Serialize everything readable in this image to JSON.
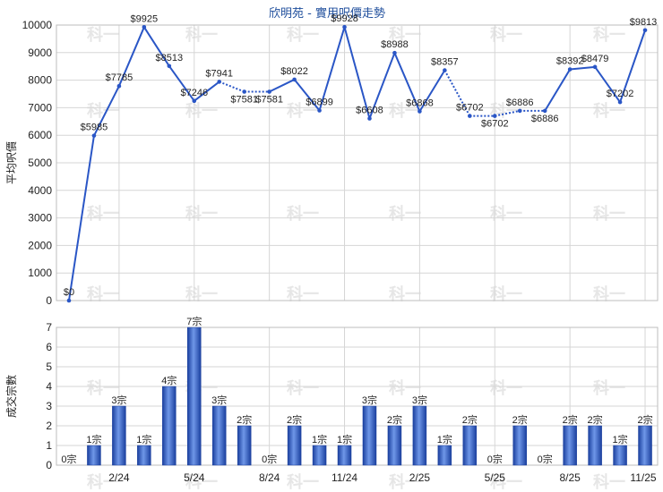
{
  "chart_data": [
    {
      "type": "line",
      "title": "欣明苑 - 實用呎價走勢",
      "ylabel": "平均呎價",
      "ylim": [
        0,
        10000
      ],
      "yticks": [
        0,
        1000,
        2000,
        3000,
        4000,
        5000,
        6000,
        7000,
        8000,
        9000,
        10000
      ],
      "x_tick_labels": [
        "2/24",
        "5/24",
        "8/24",
        "11/24",
        "2/25",
        "5/25",
        "8/25",
        "11/25"
      ],
      "series": [
        {
          "color": "#2a56c6",
          "values": [
            0,
            5985,
            7785,
            9925,
            8513,
            7246,
            7941,
            7581,
            7581,
            8022,
            6899,
            9928,
            6608,
            8988,
            6868,
            8357,
            6702,
            6702,
            6886,
            6886,
            8392,
            8479,
            7202,
            9813
          ],
          "labels": [
            "$0",
            "$5985",
            "$7785",
            "$9925",
            "$8513",
            "$7246",
            "$7941",
            "$7581",
            "$7581",
            "$8022",
            "$6899",
            "$9928",
            "$6608",
            "$8988",
            "$6868",
            "$8357",
            "$6702",
            "$6702",
            "$6886",
            "$6886",
            "$8392",
            "$8479",
            "$7202",
            "$9813"
          ],
          "interpolated": [
            false,
            false,
            false,
            false,
            false,
            false,
            false,
            true,
            false,
            false,
            false,
            false,
            false,
            false,
            false,
            false,
            true,
            false,
            true,
            false,
            false,
            false,
            false,
            false
          ]
        }
      ]
    },
    {
      "type": "bar",
      "ylabel": "成交宗數",
      "ylim": [
        0,
        7
      ],
      "yticks": [
        0,
        1,
        2,
        3,
        4,
        5,
        6,
        7
      ],
      "x_tick_labels": [
        "2/24",
        "5/24",
        "8/24",
        "11/24",
        "2/25",
        "5/25",
        "8/25",
        "11/25"
      ],
      "series": [
        {
          "color": "#2a56c6",
          "values": [
            0,
            1,
            3,
            1,
            4,
            7,
            3,
            2,
            0,
            2,
            1,
            1,
            3,
            2,
            3,
            1,
            2,
            0,
            2,
            0,
            2,
            2,
            1,
            2
          ],
          "labels": [
            "0宗",
            "1宗",
            "3宗",
            "1宗",
            "4宗",
            "7宗",
            "3宗",
            "2宗",
            "0宗",
            "2宗",
            "1宗",
            "1宗",
            "3宗",
            "2宗",
            "3宗",
            "1宗",
            "2宗",
            "0宗",
            "2宗",
            "0宗",
            "2宗",
            "2宗",
            "1宗",
            "2宗"
          ]
        }
      ]
    }
  ],
  "watermark": "科一"
}
